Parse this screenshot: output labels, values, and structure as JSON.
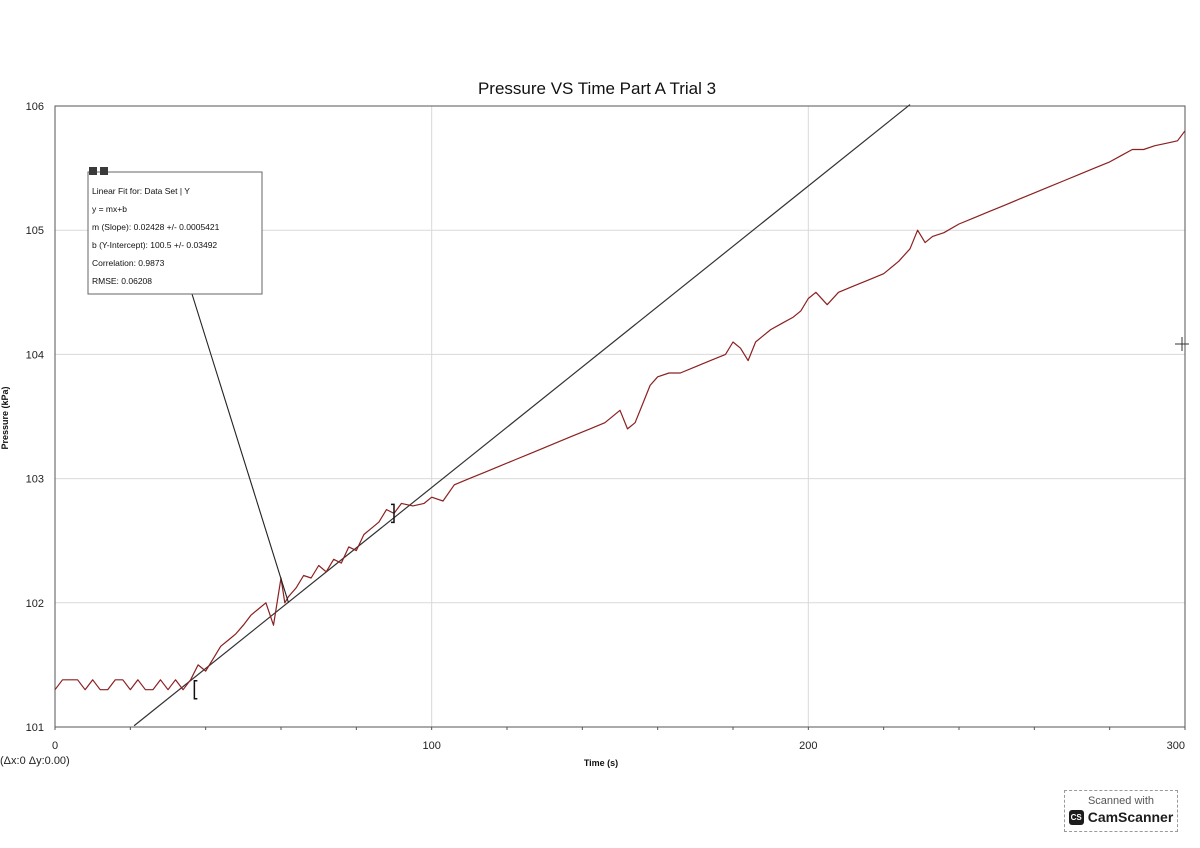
{
  "chart_data": {
    "type": "line",
    "title": "Pressure VS Time Part A Trial 3",
    "xlabel": "Time (s)",
    "ylabel": "Pressure (kPa)",
    "xlim": [
      0,
      300
    ],
    "ylim": [
      101,
      106
    ],
    "x_ticks": [
      0,
      100,
      200,
      300
    ],
    "y_ticks": [
      101,
      102,
      103,
      104,
      105,
      106
    ],
    "grid": true,
    "series": [
      {
        "name": "Data Set | Y",
        "color": "#8b2020",
        "x": [
          0,
          2,
          4,
          6,
          8,
          10,
          12,
          14,
          16,
          18,
          20,
          22,
          24,
          26,
          28,
          30,
          32,
          34,
          36,
          38,
          40,
          42,
          44,
          46,
          48,
          50,
          52,
          54,
          56,
          58,
          60,
          61,
          62,
          64,
          66,
          68,
          70,
          72,
          74,
          76,
          78,
          80,
          82,
          84,
          86,
          88,
          90,
          92,
          95,
          98,
          100,
          103,
          106,
          110,
          114,
          118,
          122,
          126,
          130,
          134,
          138,
          142,
          146,
          150,
          152,
          154,
          156,
          158,
          160,
          163,
          166,
          170,
          174,
          178,
          180,
          182,
          184,
          186,
          188,
          190,
          193,
          196,
          198,
          200,
          202,
          205,
          208,
          212,
          216,
          220,
          224,
          227,
          229,
          231,
          233,
          236,
          240,
          244,
          248,
          252,
          256,
          260,
          264,
          268,
          272,
          276,
          280,
          283,
          286,
          289,
          292,
          295,
          298,
          300
        ],
        "values": [
          101.3,
          101.38,
          101.38,
          101.38,
          101.3,
          101.38,
          101.3,
          101.3,
          101.38,
          101.38,
          101.3,
          101.38,
          101.3,
          101.3,
          101.38,
          101.3,
          101.38,
          101.3,
          101.38,
          101.5,
          101.45,
          101.55,
          101.65,
          101.7,
          101.75,
          101.82,
          101.9,
          101.95,
          102.0,
          101.82,
          102.2,
          102.0,
          102.05,
          102.12,
          102.22,
          102.2,
          102.3,
          102.25,
          102.35,
          102.32,
          102.45,
          102.42,
          102.55,
          102.6,
          102.65,
          102.75,
          102.72,
          102.8,
          102.78,
          102.8,
          102.85,
          102.82,
          102.95,
          103.0,
          103.05,
          103.1,
          103.15,
          103.2,
          103.25,
          103.3,
          103.35,
          103.4,
          103.45,
          103.55,
          103.4,
          103.45,
          103.6,
          103.75,
          103.82,
          103.85,
          103.85,
          103.9,
          103.95,
          104.0,
          104.1,
          104.05,
          103.95,
          104.1,
          104.15,
          104.2,
          104.25,
          104.3,
          104.35,
          104.45,
          104.5,
          104.4,
          104.5,
          104.55,
          104.6,
          104.65,
          104.75,
          104.85,
          105.0,
          104.9,
          104.95,
          104.98,
          105.05,
          105.1,
          105.15,
          105.2,
          105.25,
          105.3,
          105.35,
          105.4,
          105.45,
          105.5,
          105.55,
          105.6,
          105.65,
          105.65,
          105.68,
          105.7,
          105.72,
          105.8
        ]
      }
    ],
    "linear_fit": {
      "slope": 0.02428,
      "intercept": 100.5,
      "x_range": [
        21,
        227
      ]
    },
    "fit_brackets": [
      {
        "x": 37,
        "y": 101.3
      },
      {
        "x": 90,
        "y": 102.72
      }
    ],
    "annotation_point": {
      "x": 62,
      "y": 102.0
    },
    "fit_box": {
      "lines": [
        "Linear Fit for: Data Set | Y",
        "y = mx+b",
        "m (Slope): 0.02428 +/- 0.0005421",
        "b (Y-Intercept): 100.5 +/- 0.03492",
        "Correlation: 0.9873",
        "RMSE: 0.06208"
      ]
    },
    "readout": "(Δx:0 Δy:0.00)"
  },
  "badge": {
    "top": "Scanned with",
    "logo": "CS",
    "name": "CamScanner"
  }
}
